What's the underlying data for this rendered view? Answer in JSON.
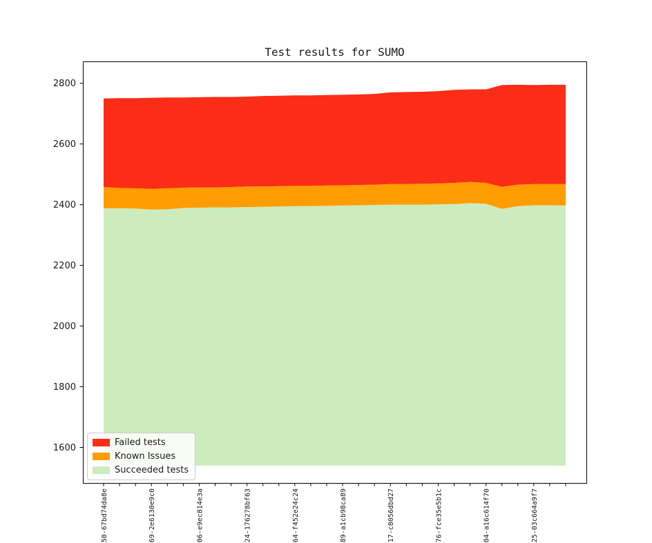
{
  "chart_data": {
    "type": "area",
    "stacked": true,
    "title": "Test results for SUMO",
    "xlabel": "",
    "ylabel": "",
    "n_points": 30,
    "baseline_value": 1540,
    "ylim": [
      1483,
      2872
    ],
    "yticks": [
      1600,
      1800,
      2000,
      2200,
      2400,
      2600,
      2800
    ],
    "grid": false,
    "x_tick_label_every": 3,
    "x_tick_labels": [
      "50-67bd74da8e",
      "69-2e6130e9c0",
      "06-e9ec814e3a",
      "24-176278bf63",
      "64-f452e24c24",
      "89-a1cb98ca89",
      "17-c8056dbd27",
      "76-fce35e5b1c",
      "04-a16c614f70",
      "25-03c664a9f7"
    ],
    "legend_position": "lower left",
    "series": [
      {
        "name": "Failed tests",
        "color": "#fb2d16",
        "values": [
          292,
          296,
          297,
          300,
          299,
          297,
          297,
          298,
          297,
          296,
          298,
          298,
          298,
          298,
          298,
          298,
          298,
          299,
          302,
          303,
          303,
          304,
          306,
          305,
          308,
          335,
          329,
          326,
          327,
          327
        ]
      },
      {
        "name": "Known Issues",
        "color": "#ff9d00",
        "values": [
          70,
          67,
          67,
          68,
          69,
          67,
          67,
          66,
          67,
          68,
          67,
          67,
          67,
          67,
          67,
          67,
          67,
          67,
          68,
          68,
          69,
          69,
          70,
          70,
          69,
          73,
          71,
          70,
          70,
          71
        ]
      },
      {
        "name": "Succeeded tests",
        "color": "#cdecbe",
        "values": [
          2388,
          2388,
          2387,
          2384,
          2385,
          2389,
          2390,
          2391,
          2391,
          2392,
          2393,
          2394,
          2395,
          2395,
          2396,
          2397,
          2398,
          2399,
          2400,
          2400,
          2400,
          2401,
          2402,
          2405,
          2403,
          2386,
          2395,
          2398,
          2398,
          2397
        ]
      }
    ],
    "axis_color": "#000000",
    "tick_label_color": "#1a1a1a"
  }
}
